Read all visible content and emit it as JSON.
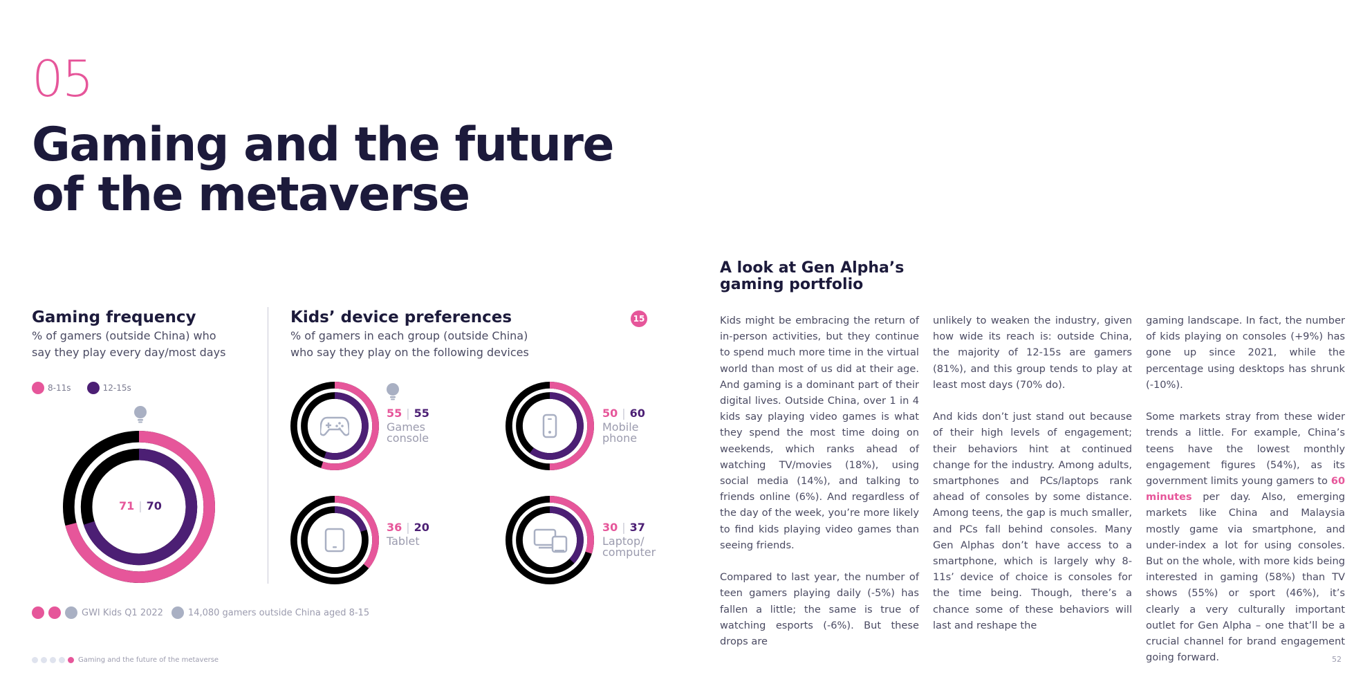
{
  "header": {
    "section_number": "05",
    "title_line1": "Gaming and the future",
    "title_line2": "of the metaverse"
  },
  "frequency": {
    "title": "Gaming frequency",
    "subtitle_line1": "% of gamers (outside China) who",
    "subtitle_line2": "say they play every day/most days",
    "legend": [
      {
        "label": "8-11s",
        "color": "#e6569a"
      },
      {
        "label": "12-15s",
        "color": "#4c1f74"
      }
    ]
  },
  "devices": {
    "title": "Kids’ device preferences",
    "subtitle_line1": "% of gamers in each group (outside China)",
    "subtitle_line2": "who say they play on the following devices",
    "badge": "15",
    "items": [
      {
        "icon": "gamepad-icon",
        "label_line1": "Games",
        "label_line2": "console",
        "v8": "55",
        "v12": "55"
      },
      {
        "icon": "smartphone-icon",
        "label_line1": "Mobile",
        "label_line2": "phone",
        "v8": "50",
        "v12": "60"
      },
      {
        "icon": "tablet-icon",
        "label_line1": "Tablet",
        "label_line2": "",
        "v8": "36",
        "v12": "20"
      },
      {
        "icon": "laptop-icon",
        "label_line1": "Laptop/",
        "label_line2": "computer",
        "v8": "30",
        "v12": "37"
      }
    ]
  },
  "chart_data": [
    {
      "type": "donut",
      "title": "Gaming frequency",
      "series": [
        {
          "name": "8-11s",
          "values": [
            71
          ],
          "color": "#e6569a"
        },
        {
          "name": "12-15s",
          "values": [
            70
          ],
          "color": "#4c1f74"
        }
      ],
      "ylim": [
        0,
        100
      ]
    },
    {
      "type": "donut",
      "title": "Kids’ device preferences",
      "categories": [
        "Games console",
        "Mobile phone",
        "Tablet",
        "Laptop/computer"
      ],
      "series": [
        {
          "name": "8-11s",
          "values": [
            55,
            50,
            36,
            30
          ],
          "color": "#e6569a"
        },
        {
          "name": "12-15s",
          "values": [
            55,
            60,
            20,
            37
          ],
          "color": "#4c1f74"
        }
      ],
      "ylim": [
        0,
        100
      ]
    }
  ],
  "source": {
    "label": "GWI Kids Q1 2022",
    "base": "14,080 gamers outside China aged 8-15"
  },
  "article": {
    "title_line1": "A look at Gen Alpha’s",
    "title_line2": "gaming portfolio",
    "col1_p1": "Kids might be embracing the return of in-person activities, but they continue to spend much more time in the virtual world than most of us did at their age. And gaming is a dominant part of their digital lives. Outside China, over 1 in 4 kids say playing video games is what they spend the most time doing on weekends, which ranks ahead of watching TV/movies (18%), using social media (14%), and talking to friends online (6%). And regardless of the day of the week, you’re more likely to find kids playing video games than seeing friends.",
    "col1_p2": "Compared to last year, the number of teen gamers playing daily (-5%) has fallen a little; the same is true of watching esports (-6%). But these drops are",
    "col2_p1": "unlikely to weaken the industry, given how wide its reach is: outside China, the majority of 12-15s are gamers (81%), and this group tends to play at least most days (70% do).",
    "col2_p2": "And kids don’t just stand out because of their high levels of engagement; their behaviors hint at continued change for the industry. Among adults, smartphones and PCs/laptops rank ahead of consoles by some distance. Among teens, the gap is much smaller, and PCs fall behind consoles. Many Gen Alphas don’t have access to a smartphone, which is largely why 8-11s’ device of choice is consoles for the time being. Though, there’s a chance some of these behaviors will last and reshape the",
    "col3_p1": "gaming landscape. In fact, the number of kids playing on consoles (+9%) has gone up since 2021, while the percentage using desktops has shrunk (-10%).",
    "col3_p2_a": "Some markets stray from these wider trends a little. For example, China’s teens have the lowest monthly engagement figures (54%), as its government limits young gamers to ",
    "col3_p2_hl": "60 minutes",
    "col3_p2_b": " per day. Also, emerging markets like China and Malaysia mostly game via smartphone, and under-index a lot for using consoles. But on the whole, with more kids being interested in gaming (58%) than TV shows (55%) or sport (46%), it’s clearly a very culturally important outlet for Gen Alpha – one that’ll be a crucial channel for brand engagement going forward."
  },
  "footer": {
    "section_label": "Gaming and the future of the metaverse",
    "page_number": "52"
  },
  "colors": {
    "pink": "#e6569a",
    "purple": "#4c1f74",
    "navy": "#1c1a3b",
    "ring_base": "#000000",
    "icon_grey": "#a9b0c3"
  }
}
